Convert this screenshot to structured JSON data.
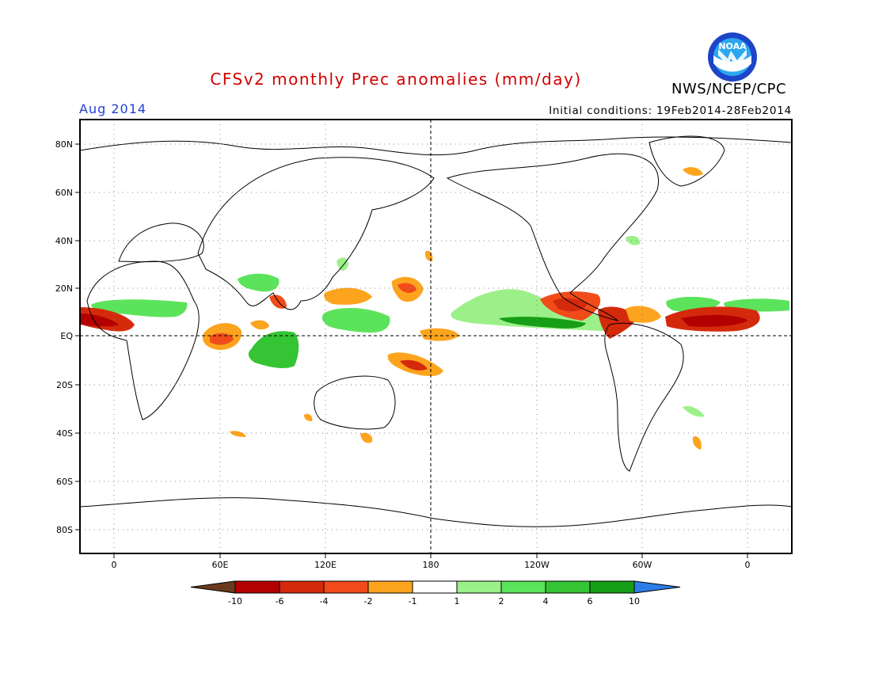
{
  "header": {
    "title": "CFSv2 monthly Prec anomalies (mm/day)",
    "agency": "NWS/NCEP/CPC",
    "logo_text": "NOAA",
    "month": "Aug 2014",
    "initial_conditions": "Initial conditions: 19Feb2014-28Feb2014"
  },
  "colors": {
    "title": "#d00000",
    "month": "#1f3fd6",
    "dry_extreme": "#6b3a1d",
    "dry_10": "#b30000",
    "dry_6": "#d42a0c",
    "dry_4": "#f14b1a",
    "dry_2": "#fca41d",
    "neutral": "#ffffff",
    "wet_1": "#9cf08a",
    "wet_2": "#5ce35c",
    "wet_4": "#34c434",
    "wet_6": "#169e16",
    "wet_extreme": "#2d7de6"
  },
  "map": {
    "lat_labels": [
      "80N",
      "60N",
      "40N",
      "20N",
      "EQ",
      "20S",
      "40S",
      "60S",
      "80S"
    ],
    "lon_labels": [
      "0",
      "60E",
      "120E",
      "180",
      "120W",
      "60W",
      "0"
    ]
  },
  "colorbar": {
    "labels": [
      "-10",
      "-6",
      "-4",
      "-2",
      "-1",
      "1",
      "2",
      "4",
      "6",
      "10"
    ]
  }
}
